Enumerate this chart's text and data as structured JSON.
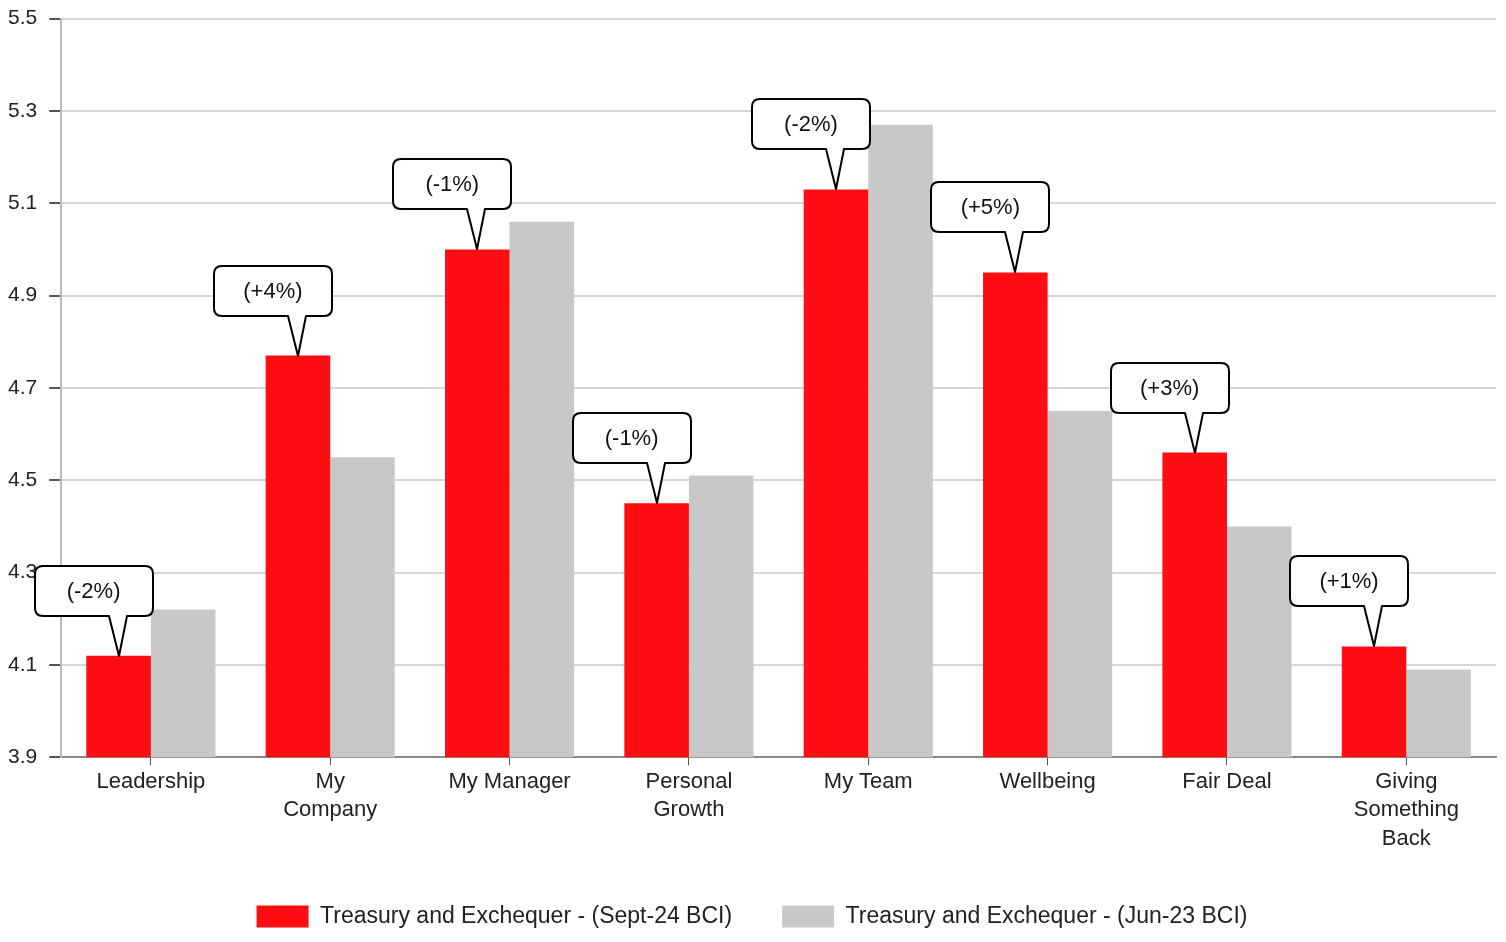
{
  "chart_data": {
    "type": "bar",
    "categories": [
      "Leadership",
      "My\nCompany",
      "My Manager",
      "Personal\nGrowth",
      "My Team",
      "Wellbeing",
      "Fair Deal",
      "Giving\nSomething\nBack"
    ],
    "series": [
      {
        "name": "Treasury and Exchequer - (Sept-24 BCI)",
        "color": "#ff0d12",
        "values": [
          4.12,
          4.77,
          5.0,
          4.45,
          5.13,
          4.95,
          4.56,
          4.14
        ]
      },
      {
        "name": "Treasury and Exchequer - (Jun-23 BCI)",
        "color": "#c8c8c8",
        "values": [
          4.22,
          4.55,
          5.06,
          4.51,
          5.27,
          4.65,
          4.4,
          4.09
        ]
      }
    ],
    "ylim": [
      3.9,
      5.5
    ],
    "yticks": [
      3.9,
      4.1,
      4.3,
      4.5,
      4.7,
      4.9,
      5.1,
      5.3,
      5.5
    ],
    "grid": "y",
    "legend": "bottom",
    "annotations": [
      {
        "text": "(-2%)",
        "x": "Leadership",
        "y": 4.12
      },
      {
        "text": "(+4%)",
        "x": "My\nCompany",
        "y": 4.77
      },
      {
        "text": "(-1%)",
        "x": "My Manager",
        "y": 5.0
      },
      {
        "text": "(-1%)",
        "x": "Personal\nGrowth",
        "y": 4.45
      },
      {
        "text": "(-2%)",
        "x": "My Team",
        "y": 5.13
      },
      {
        "text": "(+5%)",
        "x": "Wellbeing",
        "y": 4.95
      },
      {
        "text": "(+3%)",
        "x": "Fair Deal",
        "y": 4.56
      },
      {
        "text": "(+1%)",
        "x": "Giving\nSomething\nBack",
        "y": 4.14
      }
    ]
  }
}
